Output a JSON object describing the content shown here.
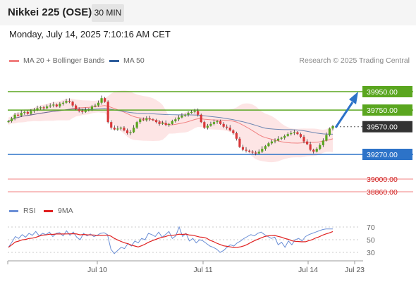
{
  "header": {
    "title": "Nikkei 225 (OSE)",
    "timeframe": "30 MIN"
  },
  "datetime": "Monday, July 14, 2025 7:10:16 AM CET",
  "legend": {
    "ma20_label": "MA 20 + Bollinger Bands",
    "ma50_label": "MA 50"
  },
  "credit": "Research © 2025 Trading Central",
  "rsi_legend": {
    "rsi_label": "RSI",
    "ma_label": "9MA"
  },
  "colors": {
    "resistance": "#5aa61f",
    "support": "#2d73c8",
    "target": "#f08080",
    "ma20": "#f08080",
    "ma50": "#2f5e9c",
    "bollinger_fill": "#fde0e0",
    "up_candle": "#5aa61f",
    "down_candle": "#d9383a",
    "current_price": "#333333",
    "forecast_arrow": "#2d73c8",
    "rsi_line": "#6b8fd6",
    "rsi_ma": "#e02020"
  },
  "chart_data": {
    "type": "candlestick",
    "title": "Nikkei 225 (OSE)",
    "timeframe": "30 MIN",
    "x_tick_labels": [
      "Jul 10",
      "Jul 11",
      "Jul 14",
      "Jul 23"
    ],
    "price_ylim": [
      38800,
      40050
    ],
    "levels": [
      {
        "type": "resistance",
        "value": "39950.00"
      },
      {
        "type": "resistance",
        "value": "39750.00"
      },
      {
        "type": "current",
        "value": "39570.00"
      },
      {
        "type": "support",
        "value": "39270.00"
      },
      {
        "type": "target",
        "value": "39000.00"
      },
      {
        "type": "target",
        "value": "38860.00"
      }
    ],
    "price_series": [
      39630,
      39660,
      39700,
      39690,
      39720,
      39730,
      39710,
      39740,
      39750,
      39770,
      39780,
      39770,
      39790,
      39800,
      39810,
      39790,
      39820,
      39830,
      39850,
      39840,
      39800,
      39760,
      39740,
      39730,
      39750,
      39760,
      39790,
      39800,
      39830,
      39880,
      39840,
      39620,
      39560,
      39540,
      39550,
      39560,
      39530,
      39500,
      39510,
      39560,
      39620,
      39650,
      39640,
      39660,
      39650,
      39640,
      39620,
      39600,
      39610,
      39590,
      39600,
      39630,
      39650,
      39670,
      39690,
      39700,
      39720,
      39730,
      39740,
      39700,
      39620,
      39560,
      39580,
      39600,
      39620,
      39630,
      39600,
      39570,
      39560,
      39530,
      39500,
      39440,
      39350,
      39320,
      39310,
      39300,
      39290,
      39280,
      39300,
      39330,
      39360,
      39390,
      39410,
      39420,
      39440,
      39450,
      39470,
      39490,
      39500,
      39510,
      39490,
      39460,
      39410,
      39380,
      39320,
      39300,
      39330,
      39370,
      39420,
      39480,
      39550,
      39575
    ],
    "rsi": {
      "levels": [
        70,
        50,
        30
      ],
      "ylim": [
        20,
        80
      ],
      "values": [
        38,
        46,
        55,
        52,
        58,
        54,
        60,
        57,
        63,
        56,
        60,
        58,
        62,
        55,
        60,
        61,
        56,
        64,
        57,
        62,
        54,
        50,
        60,
        56,
        59,
        55,
        57,
        60,
        61,
        58,
        35,
        28,
        33,
        38,
        36,
        44,
        40,
        48,
        45,
        52,
        50,
        60,
        58,
        55,
        62,
        54,
        58,
        63,
        52,
        56,
        70,
        55,
        60,
        48,
        52,
        45,
        50,
        48,
        44,
        40,
        38,
        35,
        30,
        33,
        38,
        42,
        40,
        45,
        48,
        52,
        55,
        58,
        56,
        60,
        62,
        58,
        55,
        52,
        54,
        42,
        46,
        38,
        48,
        42,
        50,
        52,
        48,
        55,
        58,
        60,
        62,
        64,
        66,
        67,
        67,
        67
      ]
    }
  }
}
